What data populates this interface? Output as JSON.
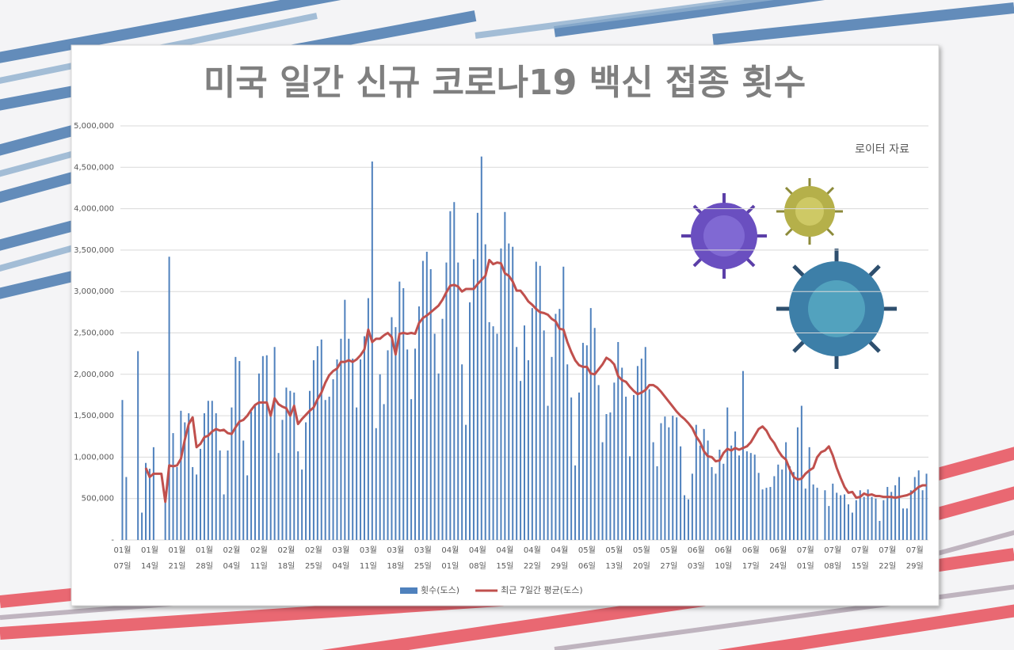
{
  "chart_data": {
    "type": "bar-line",
    "title": "미국 일간 신규 코로나19 백신 접종 횟수",
    "annotation": "로이터 자료",
    "categories": [
      "01월 07일",
      null,
      null,
      null,
      null,
      null,
      null,
      "01월 14일",
      null,
      null,
      null,
      null,
      null,
      null,
      "01월 21일",
      null,
      null,
      null,
      null,
      null,
      null,
      "01월 28일",
      null,
      null,
      null,
      null,
      null,
      null,
      "02월 04일",
      null,
      null,
      null,
      null,
      null,
      null,
      "02월 11일",
      null,
      null,
      null,
      null,
      null,
      null,
      "02월 18일",
      null,
      null,
      null,
      null,
      null,
      null,
      "02월 25일",
      null,
      null,
      null,
      null,
      null,
      null,
      "03월 04일",
      null,
      null,
      null,
      null,
      null,
      null,
      "03월 11일",
      null,
      null,
      null,
      null,
      null,
      null,
      "03월 18일",
      null,
      null,
      null,
      null,
      null,
      null,
      "03월 25일",
      null,
      null,
      null,
      null,
      null,
      null,
      "04월 01일",
      null,
      null,
      null,
      null,
      null,
      null,
      "04월 08일",
      null,
      null,
      null,
      null,
      null,
      null,
      "04월 15일",
      null,
      null,
      null,
      null,
      null,
      null,
      "04월 22일",
      null,
      null,
      null,
      null,
      null,
      null,
      "04월 29일",
      null,
      null,
      null,
      null,
      null,
      null,
      "05월 06일",
      null,
      null,
      null,
      null,
      null,
      null,
      "05월 13일",
      null,
      null,
      null,
      null,
      null,
      null,
      "05월 20일",
      null,
      null,
      null,
      null,
      null,
      null,
      "05월 27일",
      null,
      null,
      null,
      null,
      null,
      null,
      "06월 03일",
      null,
      null,
      null,
      null,
      null,
      null,
      "06월 10일",
      null,
      null,
      null,
      null,
      null,
      null,
      "06월 17일",
      null,
      null,
      null,
      null,
      null,
      null,
      "06월 24일",
      null,
      null,
      null,
      null,
      null,
      null,
      "07월 01일",
      null,
      null,
      null,
      null,
      null,
      null,
      "07월 08일",
      null,
      null,
      null,
      null,
      null,
      null,
      "07월 15일",
      null,
      null,
      null,
      null,
      null,
      null,
      "07월 22일",
      null,
      null,
      null,
      null,
      null,
      null,
      "07월 29일",
      null,
      null,
      null
    ],
    "series": [
      {
        "name": "횟수(도스)",
        "kind": "bar",
        "color": "#4f81bd",
        "values": [
          1690000,
          760000,
          null,
          null,
          2280000,
          330000,
          930000,
          860000,
          1120000,
          null,
          null,
          470000,
          3420000,
          1290000,
          880000,
          1560000,
          1420000,
          1530000,
          880000,
          790000,
          1100000,
          1530000,
          1680000,
          1680000,
          1530000,
          1080000,
          550000,
          1080000,
          1600000,
          2210000,
          2160000,
          1200000,
          780000,
          1550000,
          1630000,
          2010000,
          2220000,
          2230000,
          1490000,
          2330000,
          1050000,
          1450000,
          1840000,
          1800000,
          1780000,
          1070000,
          850000,
          1420000,
          1800000,
          2170000,
          2340000,
          2420000,
          1690000,
          1730000,
          1940000,
          2180000,
          2430000,
          2900000,
          2430000,
          2190000,
          1600000,
          2180000,
          2460000,
          2920000,
          4570000,
          1350000,
          2000000,
          1640000,
          2290000,
          2690000,
          2570000,
          3120000,
          3040000,
          2300000,
          1700000,
          2310000,
          2820000,
          3370000,
          3480000,
          3270000,
          2490000,
          2010000,
          2670000,
          3350000,
          3970000,
          4080000,
          3350000,
          2120000,
          1390000,
          2870000,
          3390000,
          3950000,
          4630000,
          3570000,
          2630000,
          2580000,
          2490000,
          3520000,
          3960000,
          3580000,
          3540000,
          2330000,
          1920000,
          2590000,
          2170000,
          2800000,
          3360000,
          3310000,
          2530000,
          1620000,
          2210000,
          2730000,
          2790000,
          3300000,
          2120000,
          1720000,
          900000,
          1780000,
          2380000,
          2350000,
          2800000,
          2560000,
          1870000,
          1180000,
          1520000,
          1540000,
          1900000,
          2390000,
          2080000,
          1730000,
          1010000,
          1750000,
          2100000,
          2190000,
          2330000,
          1820000,
          1180000,
          890000,
          1410000,
          1490000,
          1360000,
          1500000,
          1480000,
          1130000,
          540000,
          490000,
          800000,
          1390000,
          1140000,
          1340000,
          1200000,
          880000,
          800000,
          1090000,
          920000,
          1600000,
          1140000,
          1310000,
          1020000,
          2040000,
          1070000,
          1050000,
          1030000,
          810000,
          610000,
          630000,
          640000,
          770000,
          910000,
          850000,
          1180000,
          890000,
          820000,
          1360000,
          1620000,
          620000,
          1120000,
          670000,
          630000,
          null,
          600000,
          410000,
          680000,
          570000,
          540000,
          550000,
          430000,
          330000,
          480000,
          600000,
          520000,
          610000,
          520000,
          500000,
          230000,
          480000,
          640000,
          580000,
          660000,
          760000,
          380000,
          380000,
          600000,
          760000,
          840000,
          600000,
          800000
        ]
      },
      {
        "name": "최근 7일간 평균(도스)",
        "kind": "line",
        "color": "#c0504d",
        "values": [
          null,
          null,
          null,
          null,
          null,
          null,
          870000,
          760000,
          800000,
          800000,
          800000,
          460000,
          900000,
          890000,
          900000,
          980000,
          1210000,
          1400000,
          1480000,
          1120000,
          1160000,
          1240000,
          1260000,
          1310000,
          1340000,
          1320000,
          1330000,
          1290000,
          1280000,
          1360000,
          1430000,
          1450000,
          1500000,
          1570000,
          1630000,
          1660000,
          1660000,
          1660000,
          1500000,
          1710000,
          1640000,
          1610000,
          1590000,
          1500000,
          1620000,
          1400000,
          1460000,
          1510000,
          1560000,
          1600000,
          1700000,
          1780000,
          1900000,
          1990000,
          2040000,
          2070000,
          2150000,
          2150000,
          2170000,
          2150000,
          2180000,
          2230000,
          2300000,
          2540000,
          2390000,
          2430000,
          2430000,
          2470000,
          2500000,
          2450000,
          2240000,
          2490000,
          2500000,
          2490000,
          2500000,
          2490000,
          2620000,
          2680000,
          2710000,
          2750000,
          2790000,
          2830000,
          2900000,
          2990000,
          3070000,
          3080000,
          3060000,
          3000000,
          3030000,
          3030000,
          3030000,
          3090000,
          3140000,
          3190000,
          3380000,
          3330000,
          3350000,
          3340000,
          3220000,
          3190000,
          3120000,
          3010000,
          3010000,
          2950000,
          2880000,
          2840000,
          2790000,
          2750000,
          2740000,
          2720000,
          2670000,
          2640000,
          2550000,
          2540000,
          2390000,
          2270000,
          2170000,
          2110000,
          2090000,
          2090000,
          2010000,
          2000000,
          2060000,
          2120000,
          2200000,
          2170000,
          2120000,
          1980000,
          1930000,
          1910000,
          1850000,
          1800000,
          1760000,
          1780000,
          1810000,
          1870000,
          1870000,
          1840000,
          1790000,
          1730000,
          1670000,
          1610000,
          1550000,
          1500000,
          1460000,
          1410000,
          1350000,
          1250000,
          1180000,
          1070000,
          1010000,
          1000000,
          950000,
          960000,
          1050000,
          1100000,
          1080000,
          1110000,
          1090000,
          1110000,
          1130000,
          1180000,
          1260000,
          1340000,
          1370000,
          1320000,
          1230000,
          1170000,
          1080000,
          1010000,
          970000,
          850000,
          760000,
          730000,
          740000,
          800000,
          840000,
          870000,
          1000000,
          1060000,
          1080000,
          1130000,
          1020000,
          870000,
          750000,
          640000,
          570000,
          580000,
          510000,
          520000,
          560000,
          540000,
          550000,
          530000,
          530000,
          520000,
          520000,
          520000,
          510000,
          520000,
          530000,
          540000,
          560000,
          600000,
          640000,
          660000,
          660000
        ]
      }
    ],
    "ylim": [
      0,
      5000000
    ],
    "yticks": [
      {
        "value": 0,
        "label": "-"
      },
      {
        "value": 500000,
        "label": "500,000"
      },
      {
        "value": 1000000,
        "label": "1,000,000"
      },
      {
        "value": 1500000,
        "label": "1,500,000"
      },
      {
        "value": 2000000,
        "label": "2,000,000"
      },
      {
        "value": 2500000,
        "label": "2,500,000"
      },
      {
        "value": 3000000,
        "label": "3,000,000"
      },
      {
        "value": 3500000,
        "label": "3,500,000"
      },
      {
        "value": 4000000,
        "label": "4,000,000"
      },
      {
        "value": 4500000,
        "label": "4,500,000"
      },
      {
        "value": 5000000,
        "label": "5,000,000"
      }
    ],
    "grid": true
  }
}
